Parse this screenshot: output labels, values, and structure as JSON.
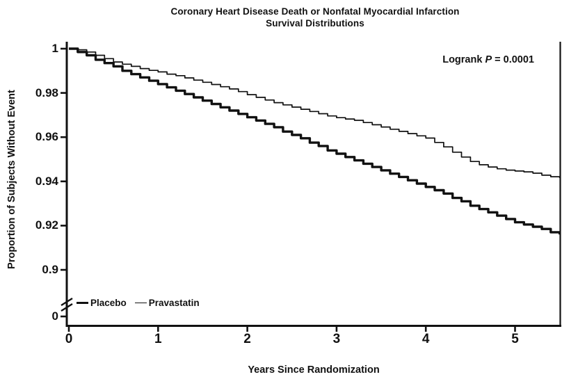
{
  "title": {
    "line1": "Coronary Heart Disease Death or Nonfatal Myocardial Infarction",
    "line2": "Survival Distributions"
  },
  "annotation": {
    "prefix": "Logrank ",
    "p_symbol": "P",
    "suffix": " = 0.0001"
  },
  "axes": {
    "x_label": "Years Since Randomization",
    "y_label": "Proportion of Subjects Without Event",
    "x_ticks": [
      "0",
      "1",
      "2",
      "3",
      "4",
      "5"
    ],
    "y_ticks": [
      {
        "value": 1.0,
        "label": "1"
      },
      {
        "value": 0.98,
        "label": "0.98"
      },
      {
        "value": 0.96,
        "label": "0.96"
      },
      {
        "value": 0.94,
        "label": "0.94"
      },
      {
        "value": 0.92,
        "label": "0.92"
      },
      {
        "value": 0.9,
        "label": "0.9"
      }
    ],
    "y_zero_label": "0"
  },
  "legend": [
    {
      "name": "Placebo",
      "line_weight": "thick"
    },
    {
      "name": "Pravastatin",
      "line_weight": "thin"
    }
  ],
  "colors": {
    "line": "#111111",
    "background": "#ffffff"
  },
  "chart_data": {
    "type": "line",
    "title": "Coronary Heart Disease Death or Nonfatal Myocardial Infarction — Survival Distributions",
    "xlabel": "Years Since Randomization",
    "ylabel": "Proportion of Subjects Without Event",
    "annotation": "Logrank P = 0.0001",
    "xlim": [
      0,
      5.5
    ],
    "ylim": [
      0.9,
      1.0
    ],
    "y_axis_break": true,
    "y_break_label": "0",
    "legend_position": "bottom-left-inside",
    "grid": false,
    "x": [
      0,
      0.1,
      0.2,
      0.3,
      0.4,
      0.5,
      0.6,
      0.7,
      0.8,
      0.9,
      1,
      1.1,
      1.2,
      1.3,
      1.4,
      1.5,
      1.6,
      1.7,
      1.8,
      1.9,
      2,
      2.1,
      2.2,
      2.3,
      2.4,
      2.5,
      2.6,
      2.7,
      2.8,
      2.9,
      3,
      3.1,
      3.2,
      3.3,
      3.4,
      3.5,
      3.6,
      3.7,
      3.8,
      3.9,
      4,
      4.1,
      4.2,
      4.3,
      4.4,
      4.5,
      4.6,
      4.7,
      4.8,
      4.9,
      5,
      5.1,
      5.2,
      5.3,
      5.4,
      5.5
    ],
    "series": [
      {
        "name": "Placebo",
        "style": "thick",
        "values": [
          1.0,
          0.9985,
          0.997,
          0.995,
          0.9935,
          0.992,
          0.99,
          0.9885,
          0.987,
          0.9855,
          0.984,
          0.9825,
          0.981,
          0.9795,
          0.978,
          0.9765,
          0.975,
          0.9735,
          0.972,
          0.9705,
          0.969,
          0.9675,
          0.966,
          0.9645,
          0.9625,
          0.961,
          0.9595,
          0.9575,
          0.956,
          0.954,
          0.9525,
          0.951,
          0.9495,
          0.948,
          0.9465,
          0.945,
          0.9435,
          0.942,
          0.9405,
          0.939,
          0.9375,
          0.936,
          0.9345,
          0.9325,
          0.931,
          0.929,
          0.9275,
          0.926,
          0.9245,
          0.923,
          0.9215,
          0.9205,
          0.9195,
          0.9185,
          0.917,
          0.916
        ]
      },
      {
        "name": "Pravastatin",
        "style": "thin",
        "values": [
          1.0,
          0.9995,
          0.9985,
          0.997,
          0.9955,
          0.994,
          0.993,
          0.992,
          0.991,
          0.9902,
          0.9895,
          0.9885,
          0.9878,
          0.9868,
          0.9858,
          0.9848,
          0.9838,
          0.9828,
          0.9818,
          0.9806,
          0.9792,
          0.978,
          0.9768,
          0.9756,
          0.9746,
          0.9736,
          0.9726,
          0.9716,
          0.9706,
          0.9696,
          0.9688,
          0.9682,
          0.9676,
          0.9666,
          0.9656,
          0.9646,
          0.9636,
          0.9626,
          0.9616,
          0.9606,
          0.9596,
          0.9576,
          0.9556,
          0.9532,
          0.951,
          0.949,
          0.9475,
          0.9465,
          0.9457,
          0.9451,
          0.9447,
          0.9443,
          0.9437,
          0.9428,
          0.9421,
          0.9415
        ]
      }
    ]
  }
}
